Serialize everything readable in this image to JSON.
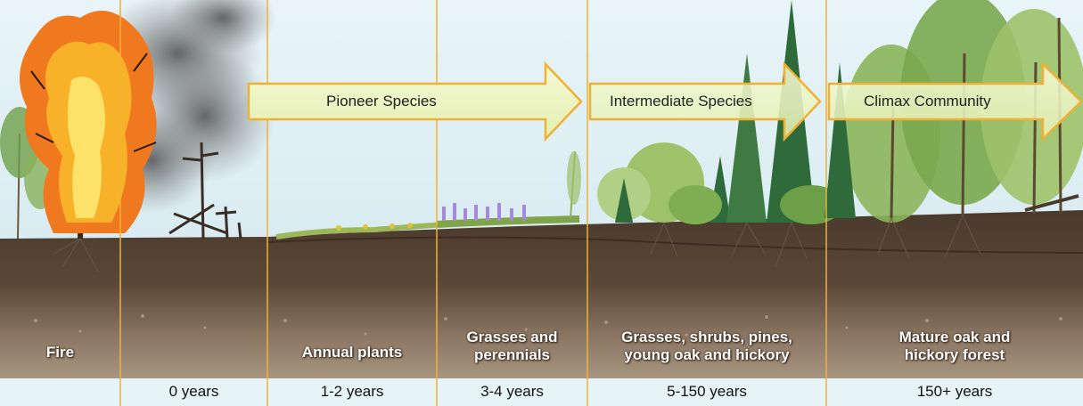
{
  "diagram": {
    "arrows": [
      {
        "label": "Pioneer Species"
      },
      {
        "label": "Intermediate Species"
      },
      {
        "label": "Climax Community"
      }
    ],
    "stages": [
      {
        "lines": [
          "Fire"
        ],
        "years": ""
      },
      {
        "lines": [],
        "years": "0 years"
      },
      {
        "lines": [
          "Annual plants"
        ],
        "years": "1-2 years"
      },
      {
        "lines": [
          "Grasses and",
          "perennials"
        ],
        "years": "3-4 years"
      },
      {
        "lines": [
          "Grasses, shrubs, pines,",
          "young oak and hickory"
        ],
        "years": "5-150 years"
      },
      {
        "lines": [
          "Mature oak and",
          "hickory forest"
        ],
        "years": "150+ years"
      }
    ],
    "colors": {
      "sky": "#e3f1f6",
      "arrow_fill": "#eef6c2",
      "arrow_stroke": "#f0b132",
      "divider": "#f0b132",
      "soil_dark": "#4a3a2c",
      "soil_light": "#9c8a77",
      "fire": "#f0781e",
      "smoke": "#6e6e6e"
    }
  }
}
